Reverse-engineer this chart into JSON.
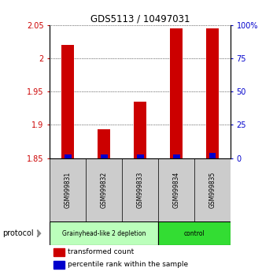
{
  "title": "GDS5113 / 10497031",
  "samples": [
    "GSM999831",
    "GSM999832",
    "GSM999833",
    "GSM999834",
    "GSM999835"
  ],
  "red_values": [
    2.02,
    1.893,
    1.935,
    2.045,
    2.045
  ],
  "blue_percentiles": [
    3,
    3,
    3,
    3,
    4
  ],
  "ylim_left": [
    1.85,
    2.05
  ],
  "ylim_right": [
    0,
    100
  ],
  "yticks_left": [
    1.85,
    1.9,
    1.95,
    2.0,
    2.05
  ],
  "yticks_right": [
    0,
    25,
    50,
    75,
    100
  ],
  "ytick_labels_left": [
    "1.85",
    "1.9",
    "1.95",
    "2",
    "2.05"
  ],
  "ytick_labels_right": [
    "0",
    "25",
    "50",
    "75",
    "100%"
  ],
  "groups": [
    {
      "label": "Grainyhead-like 2 depletion",
      "indices": [
        0,
        1,
        2
      ],
      "color": "#bbffbb"
    },
    {
      "label": "control",
      "indices": [
        3,
        4
      ],
      "color": "#33dd33"
    }
  ],
  "bar_width": 0.35,
  "red_color": "#cc0000",
  "blue_color": "#0000cc",
  "left_tick_color": "#cc0000",
  "right_tick_color": "#0000cc",
  "protocol_label": "protocol",
  "legend_red": "transformed count",
  "legend_blue": "percentile rank within the sample",
  "background_color": "#ffffff",
  "sample_box_color": "#cccccc",
  "sample_box_edge": "#333333",
  "arrow_color": "#888888"
}
